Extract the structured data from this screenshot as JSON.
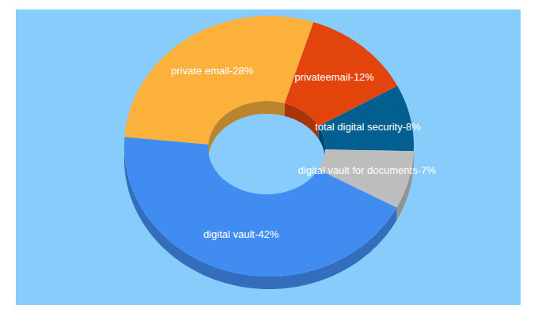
{
  "chart_data": {
    "type": "pie",
    "categories": [
      "private email-28%",
      "privateemail-12%",
      "total digital security-8%",
      "digital vault for documents-7%",
      "digital vault-42%"
    ],
    "values": [
      28,
      12,
      8,
      7,
      42
    ],
    "colors": [
      "#fbb13c",
      "#e2440b",
      "#035f90",
      "#bdbdbd",
      "#418cf0"
    ]
  }
}
